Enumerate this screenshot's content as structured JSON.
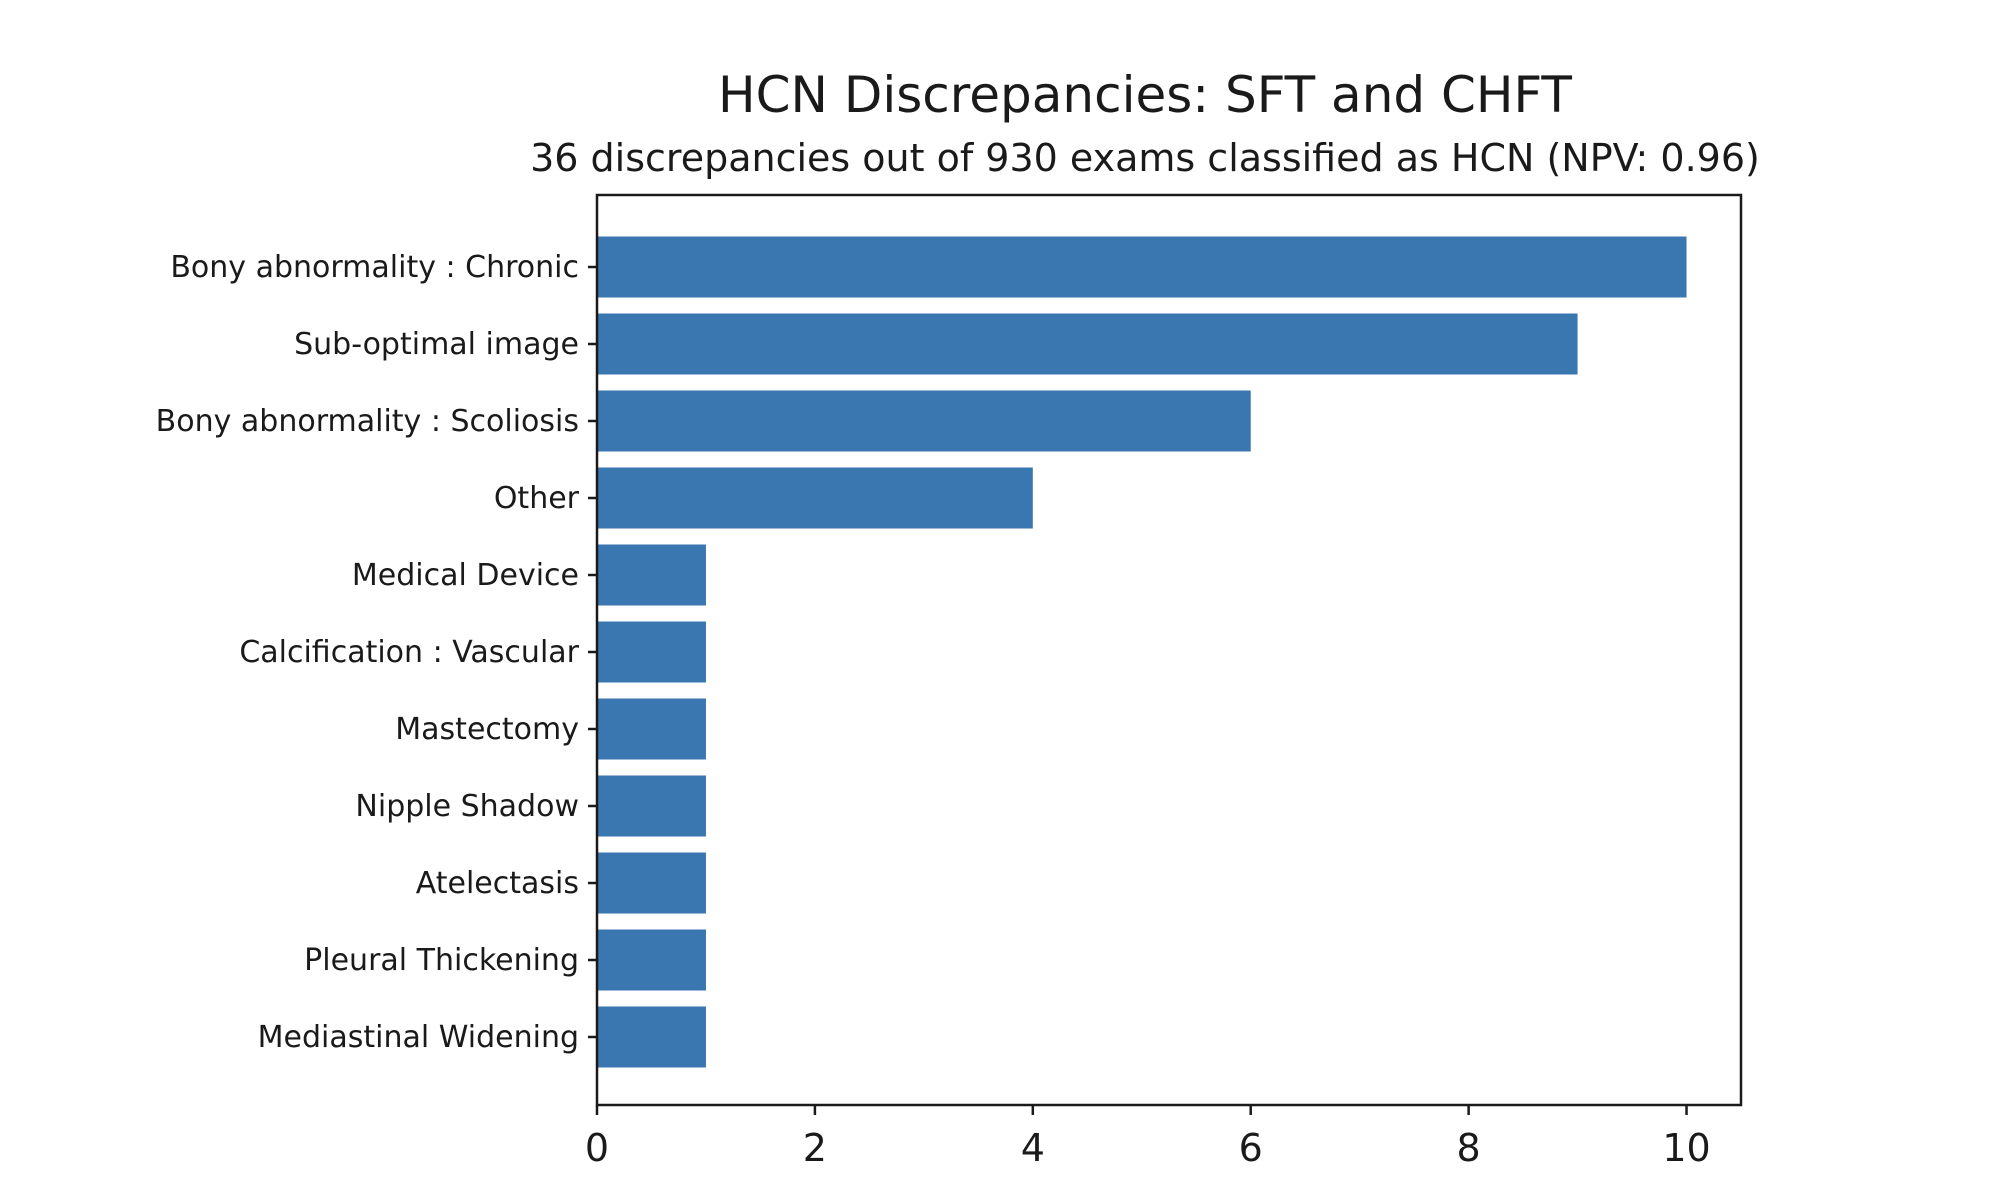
{
  "chart_data": {
    "type": "bar",
    "orientation": "horizontal",
    "title": "HCN Discrepancies: SFT and CHFT",
    "subtitle": "36 discrepancies out of 930 exams classified as HCN (NPV: 0.96)",
    "xlabel": "",
    "ylabel": "",
    "categories": [
      "Bony abnormality : Chronic",
      "Sub-optimal image",
      "Bony abnormality : Scoliosis",
      "Other",
      "Medical Device",
      "Calcification : Vascular",
      "Mastectomy",
      "Nipple Shadow",
      "Atelectasis",
      "Pleural Thickening",
      "Mediastinal Widening"
    ],
    "values": [
      10,
      9,
      6,
      4,
      1,
      1,
      1,
      1,
      1,
      1,
      1
    ],
    "xlim": [
      0,
      10.5
    ],
    "xticks": [
      0,
      2,
      4,
      6,
      8,
      10
    ],
    "grid": false,
    "bar_color": "#3a76af"
  }
}
